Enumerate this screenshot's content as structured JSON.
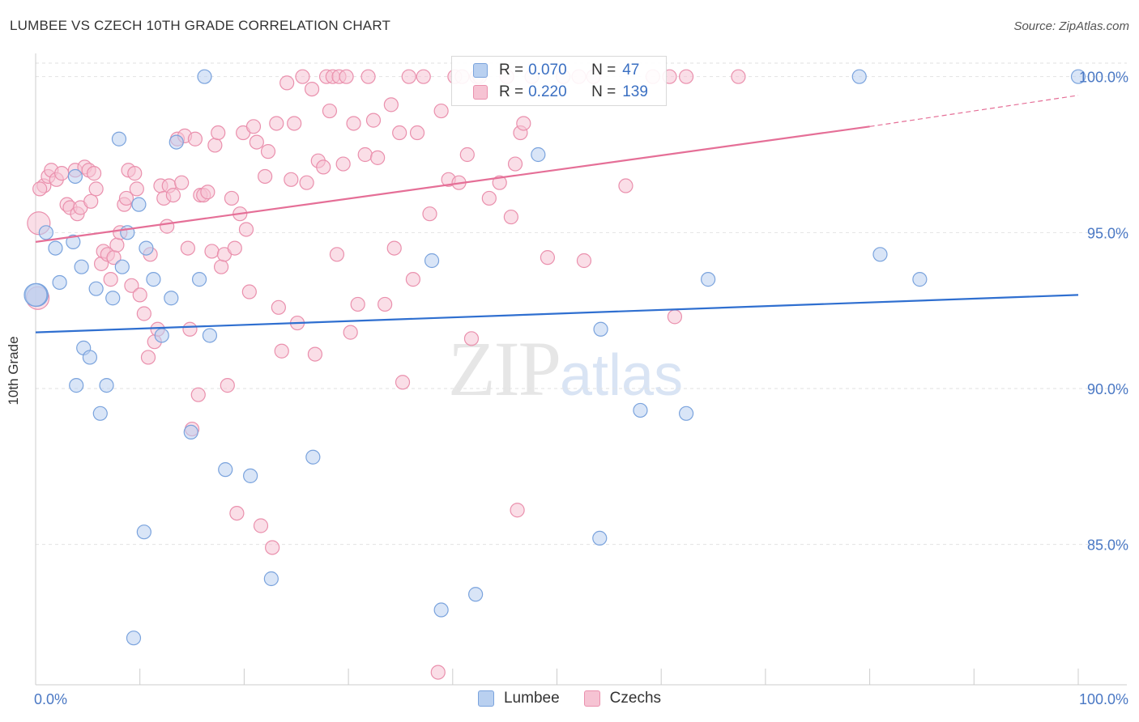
{
  "title": "LUMBEE VS CZECH 10TH GRADE CORRELATION CHART",
  "source": "Source: ZipAtlas.com",
  "watermark": {
    "zip": "ZIP",
    "atlas": "atlas"
  },
  "legend_top": {
    "rows": [
      {
        "r_label": "R =",
        "r_value": "0.070",
        "n_label": "N =",
        "n_value": "47"
      },
      {
        "r_label": "R =",
        "r_value": "0.220",
        "n_label": "N =",
        "n_value": "139"
      }
    ]
  },
  "colors": {
    "lumbee_fill": "#b9d0f0",
    "lumbee_stroke": "#7aa3dd",
    "lumbee_line": "#2f6fd0",
    "czech_fill": "#f6c3d3",
    "czech_stroke": "#ea90ad",
    "czech_line": "#e56f97",
    "tick": "#4a78c4",
    "grid": "#e2e2e2"
  },
  "chart_data": {
    "type": "scatter",
    "title": "LUMBEE VS CZECH 10TH GRADE CORRELATION CHART",
    "xlabel": "",
    "ylabel": "10th Grade",
    "xlim": [
      0,
      100
    ],
    "ylim": [
      80.5,
      100.9
    ],
    "x_ticks": [
      {
        "value": 0,
        "label": "0.0%"
      },
      {
        "value": 100,
        "label": "100.0%"
      }
    ],
    "y_ticks": [
      {
        "value": 100,
        "label": "100.0%"
      },
      {
        "value": 95,
        "label": "95.0%"
      },
      {
        "value": 90,
        "label": "90.0%"
      },
      {
        "value": 85,
        "label": "85.0%"
      }
    ],
    "grid": true,
    "legend_position": "bottom",
    "series": [
      {
        "name": "Lumbee",
        "r": 0.07,
        "n": 47,
        "trend": {
          "x0": 0,
          "y0": 91.8,
          "x1": 100,
          "y1": 93.0
        },
        "points": [
          [
            0.1,
            93.0
          ],
          [
            1.0,
            95.0
          ],
          [
            1.9,
            94.5
          ],
          [
            2.3,
            93.4
          ],
          [
            3.6,
            94.7
          ],
          [
            3.8,
            96.8
          ],
          [
            3.9,
            90.1
          ],
          [
            4.4,
            93.9
          ],
          [
            4.6,
            91.3
          ],
          [
            5.2,
            91.0
          ],
          [
            5.8,
            93.2
          ],
          [
            6.2,
            89.2
          ],
          [
            6.8,
            90.1
          ],
          [
            7.4,
            92.9
          ],
          [
            8.0,
            98.0
          ],
          [
            8.3,
            93.9
          ],
          [
            8.8,
            95.0
          ],
          [
            9.4,
            82.0
          ],
          [
            9.9,
            95.9
          ],
          [
            10.6,
            94.5
          ],
          [
            10.4,
            85.4
          ],
          [
            11.3,
            93.5
          ],
          [
            12.1,
            91.7
          ],
          [
            13.0,
            92.9
          ],
          [
            13.5,
            97.9
          ],
          [
            14.9,
            88.6
          ],
          [
            15.7,
            93.5
          ],
          [
            16.2,
            100.0
          ],
          [
            16.7,
            91.7
          ],
          [
            18.2,
            87.4
          ],
          [
            20.6,
            87.2
          ],
          [
            22.6,
            83.9
          ],
          [
            26.6,
            87.8
          ],
          [
            38.0,
            94.1
          ],
          [
            38.9,
            82.9
          ],
          [
            42.2,
            83.4
          ],
          [
            48.2,
            97.5
          ],
          [
            54.1,
            85.2
          ],
          [
            54.2,
            91.9
          ],
          [
            58.0,
            89.3
          ],
          [
            62.4,
            89.2
          ],
          [
            64.5,
            93.5
          ],
          [
            79.0,
            100.0
          ],
          [
            81.0,
            94.3
          ],
          [
            84.8,
            93.5
          ],
          [
            100.0,
            100.0
          ],
          [
            0.0,
            93.0
          ]
        ]
      },
      {
        "name": "Czechs",
        "r": 0.22,
        "n": 139,
        "trend": {
          "x0": 0,
          "y0": 94.7,
          "x1": 80,
          "y1": 98.4,
          "dash_x1": 100,
          "dash_y1": 99.4
        },
        "points": [
          [
            0.2,
            92.9
          ],
          [
            0.3,
            95.3
          ],
          [
            0.8,
            96.5
          ],
          [
            1.2,
            96.8
          ],
          [
            1.5,
            97.0
          ],
          [
            2.0,
            96.7
          ],
          [
            2.5,
            96.9
          ],
          [
            3.0,
            95.9
          ],
          [
            3.3,
            95.8
          ],
          [
            3.8,
            97.0
          ],
          [
            4.0,
            95.6
          ],
          [
            4.3,
            95.8
          ],
          [
            4.7,
            97.1
          ],
          [
            5.1,
            97.0
          ],
          [
            5.3,
            96.0
          ],
          [
            5.6,
            96.9
          ],
          [
            5.8,
            96.4
          ],
          [
            6.3,
            94.0
          ],
          [
            6.5,
            94.4
          ],
          [
            6.9,
            94.3
          ],
          [
            7.2,
            93.5
          ],
          [
            7.5,
            94.2
          ],
          [
            7.8,
            94.6
          ],
          [
            8.1,
            95.0
          ],
          [
            8.5,
            95.9
          ],
          [
            8.7,
            96.1
          ],
          [
            8.9,
            97.0
          ],
          [
            9.2,
            93.3
          ],
          [
            9.5,
            96.9
          ],
          [
            9.7,
            96.4
          ],
          [
            10.0,
            93.0
          ],
          [
            10.4,
            92.4
          ],
          [
            10.8,
            91.0
          ],
          [
            11.0,
            94.3
          ],
          [
            11.4,
            91.5
          ],
          [
            11.7,
            91.9
          ],
          [
            12.0,
            96.5
          ],
          [
            12.3,
            96.1
          ],
          [
            12.6,
            95.2
          ],
          [
            12.8,
            96.5
          ],
          [
            13.2,
            96.2
          ],
          [
            13.6,
            98.0
          ],
          [
            14.0,
            96.6
          ],
          [
            14.3,
            98.1
          ],
          [
            14.6,
            94.5
          ],
          [
            14.8,
            91.9
          ],
          [
            15.0,
            88.7
          ],
          [
            15.3,
            98.0
          ],
          [
            15.6,
            89.8
          ],
          [
            15.8,
            96.2
          ],
          [
            16.1,
            96.2
          ],
          [
            16.5,
            96.3
          ],
          [
            16.9,
            94.4
          ],
          [
            17.2,
            97.8
          ],
          [
            17.5,
            98.2
          ],
          [
            17.8,
            93.9
          ],
          [
            18.1,
            94.3
          ],
          [
            18.4,
            90.1
          ],
          [
            18.8,
            96.1
          ],
          [
            19.1,
            94.5
          ],
          [
            19.3,
            86.0
          ],
          [
            19.6,
            95.6
          ],
          [
            19.9,
            98.2
          ],
          [
            20.2,
            95.1
          ],
          [
            20.5,
            93.1
          ],
          [
            20.9,
            98.4
          ],
          [
            21.2,
            97.9
          ],
          [
            21.6,
            85.6
          ],
          [
            22.0,
            96.8
          ],
          [
            22.3,
            97.6
          ],
          [
            22.7,
            84.9
          ],
          [
            23.1,
            98.5
          ],
          [
            23.3,
            92.6
          ],
          [
            23.6,
            91.2
          ],
          [
            24.1,
            99.8
          ],
          [
            24.5,
            96.7
          ],
          [
            24.8,
            98.5
          ],
          [
            25.1,
            92.1
          ],
          [
            25.6,
            100.0
          ],
          [
            26.0,
            96.6
          ],
          [
            26.5,
            99.6
          ],
          [
            26.8,
            91.1
          ],
          [
            27.1,
            97.3
          ],
          [
            27.6,
            97.1
          ],
          [
            27.9,
            100.0
          ],
          [
            28.2,
            98.9
          ],
          [
            28.5,
            100.0
          ],
          [
            28.9,
            94.3
          ],
          [
            29.1,
            100.0
          ],
          [
            29.5,
            97.2
          ],
          [
            29.8,
            100.0
          ],
          [
            30.2,
            91.8
          ],
          [
            30.5,
            98.5
          ],
          [
            30.9,
            92.7
          ],
          [
            31.6,
            97.5
          ],
          [
            31.9,
            100.0
          ],
          [
            32.4,
            98.6
          ],
          [
            32.8,
            97.4
          ],
          [
            33.5,
            92.7
          ],
          [
            34.1,
            99.1
          ],
          [
            34.4,
            94.5
          ],
          [
            34.9,
            98.2
          ],
          [
            35.2,
            90.2
          ],
          [
            35.8,
            100.0
          ],
          [
            36.2,
            93.5
          ],
          [
            36.6,
            98.2
          ],
          [
            37.2,
            100.0
          ],
          [
            37.8,
            95.6
          ],
          [
            38.6,
            80.9
          ],
          [
            38.9,
            98.9
          ],
          [
            39.6,
            96.7
          ],
          [
            40.2,
            100.0
          ],
          [
            40.6,
            96.6
          ],
          [
            40.9,
            100.0
          ],
          [
            41.4,
            97.5
          ],
          [
            41.8,
            91.6
          ],
          [
            42.3,
            100.0
          ],
          [
            42.6,
            100.0
          ],
          [
            43.5,
            96.1
          ],
          [
            44.5,
            96.6
          ],
          [
            45.2,
            100.0
          ],
          [
            45.6,
            95.5
          ],
          [
            46.0,
            97.2
          ],
          [
            46.2,
            86.1
          ],
          [
            46.5,
            98.2
          ],
          [
            46.8,
            98.5
          ],
          [
            47.6,
            100.0
          ],
          [
            49.1,
            94.2
          ],
          [
            50.6,
            100.0
          ],
          [
            52.1,
            100.0
          ],
          [
            52.6,
            94.1
          ],
          [
            53.5,
            100.0
          ],
          [
            56.6,
            96.5
          ],
          [
            59.2,
            100.0
          ],
          [
            60.8,
            100.0
          ],
          [
            61.3,
            92.3
          ],
          [
            62.4,
            100.0
          ],
          [
            67.4,
            100.0
          ],
          [
            0.4,
            96.4
          ]
        ]
      }
    ]
  }
}
